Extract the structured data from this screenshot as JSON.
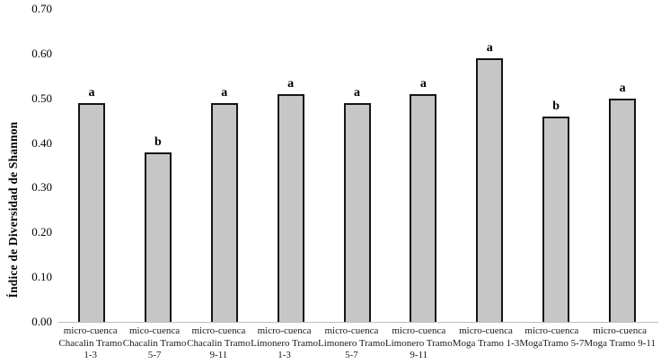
{
  "chart_data": {
    "type": "bar",
    "title": "",
    "xlabel": "",
    "ylabel": "Índice de Diversidad de Shannon",
    "ylim": [
      0,
      0.7
    ],
    "yticks": [
      "0.00",
      "0.10",
      "0.20",
      "0.30",
      "0.40",
      "0.50",
      "0.60",
      "0.70"
    ],
    "ytick_values": [
      0.0,
      0.1,
      0.2,
      0.3,
      0.4,
      0.5,
      0.6,
      0.7
    ],
    "grid": false,
    "legend_position": "none",
    "bar_fill_color": "#c6c6c6",
    "bar_border_color": "#151515",
    "axis_line_color": "#bdbdbd",
    "categories": [
      [
        "micro-cuenca",
        "Chacalin Tramo",
        "1-3"
      ],
      [
        "mico-cuenca",
        "Chacalin Tramo",
        "5-7"
      ],
      [
        "micro-cuenca",
        "Chacalin Tramo",
        "9-11"
      ],
      [
        "micro-cuenca",
        "Limonero Tramo",
        "1-3"
      ],
      [
        "micro-cuenca",
        "Limonero Tramo",
        "5-7"
      ],
      [
        "micro-cuenca",
        "Limonero Tramo",
        "9-11"
      ],
      [
        "micro-cuenca",
        "Moga Tramo 1-3"
      ],
      [
        "micro-cuenca",
        "MogaTramo 5-7"
      ],
      [
        "micro-cuenca",
        "Moga Tramo 9-11"
      ]
    ],
    "values": [
      0.49,
      0.38,
      0.49,
      0.51,
      0.49,
      0.51,
      0.59,
      0.46,
      0.5
    ],
    "significance_letters": [
      "a",
      "b",
      "a",
      "a",
      "a",
      "a",
      "a",
      "b",
      "a"
    ]
  }
}
